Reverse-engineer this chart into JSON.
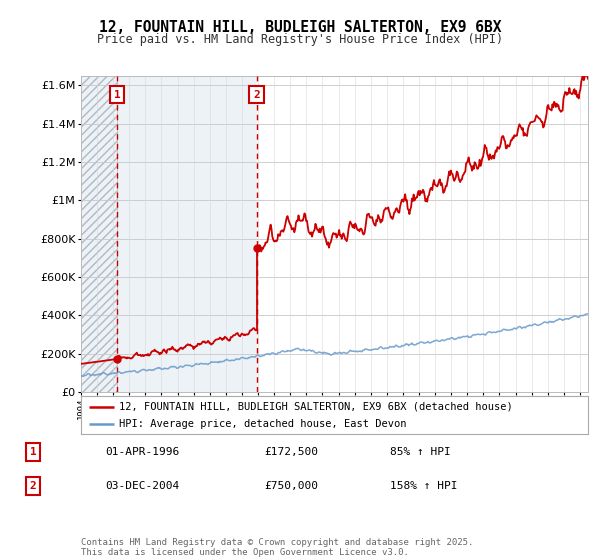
{
  "title": "12, FOUNTAIN HILL, BUDLEIGH SALTERTON, EX9 6BX",
  "subtitle": "Price paid vs. HM Land Registry's House Price Index (HPI)",
  "ylim": [
    0,
    1650000
  ],
  "yticks": [
    0,
    200000,
    400000,
    600000,
    800000,
    1000000,
    1200000,
    1400000,
    1600000
  ],
  "ytick_labels": [
    "£0",
    "£200K",
    "£400K",
    "£600K",
    "£800K",
    "£1M",
    "£1.2M",
    "£1.4M",
    "£1.6M"
  ],
  "xmin": 1994,
  "xmax": 2025.5,
  "sale1_date": 1996.25,
  "sale1_price": 172500,
  "sale2_date": 2004.92,
  "sale2_price": 750000,
  "red_color": "#cc0000",
  "blue_color": "#6699cc",
  "legend_label_red": "12, FOUNTAIN HILL, BUDLEIGH SALTERTON, EX9 6BX (detached house)",
  "legend_label_blue": "HPI: Average price, detached house, East Devon",
  "table_row1": [
    "1",
    "01-APR-1996",
    "£172,500",
    "85% ↑ HPI"
  ],
  "table_row2": [
    "2",
    "03-DEC-2004",
    "£750,000",
    "158% ↑ HPI"
  ],
  "footer": "Contains HM Land Registry data © Crown copyright and database right 2025.\nThis data is licensed under the Open Government Licence v3.0."
}
